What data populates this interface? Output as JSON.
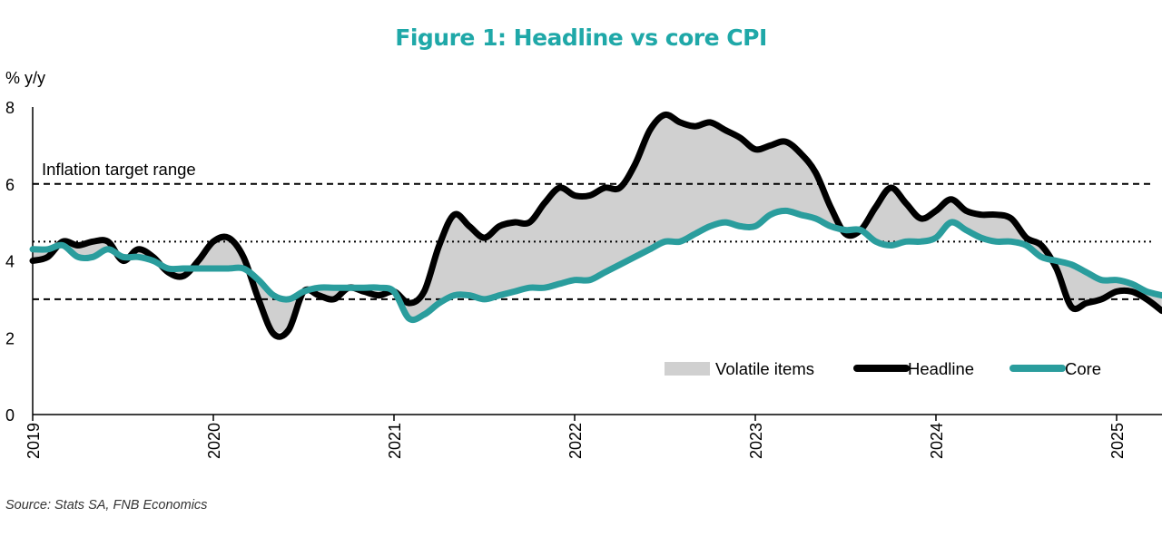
{
  "title": "Figure 1: Headline vs core CPI",
  "source": "Source: Stats SA, FNB Economics",
  "colors": {
    "title": "#1fa8a8",
    "headline": "#000000",
    "core": "#2a9d9d",
    "volatile_fill": "#d0d0d0",
    "axis": "#000000"
  },
  "chart_data": {
    "type": "line",
    "title": "Figure 1: Headline vs core CPI",
    "ylabel": "% y/y",
    "xlabel": "",
    "ylim": [
      0,
      8
    ],
    "yticks": [
      0,
      2,
      4,
      6,
      8
    ],
    "xlim": [
      2019.0,
      2025.25
    ],
    "xticks": [
      2019,
      2020,
      2021,
      2022,
      2023,
      2024,
      2025
    ],
    "grid": false,
    "legend_position": "bottom-right",
    "annotations": [
      {
        "text": "Inflation target range",
        "x": 2019.05,
        "y": 6.2
      }
    ],
    "reference_lines": [
      {
        "y": 6,
        "style": "dashed"
      },
      {
        "y": 4.5,
        "style": "dotted"
      },
      {
        "y": 3,
        "style": "dashed"
      }
    ],
    "series": [
      {
        "name": "Headline",
        "x": [
          2019.0,
          2019.0833,
          2019.1667,
          2019.25,
          2019.3333,
          2019.4167,
          2019.5,
          2019.5833,
          2019.6667,
          2019.75,
          2019.8333,
          2019.9167,
          2020.0,
          2020.0833,
          2020.1667,
          2020.25,
          2020.3333,
          2020.4167,
          2020.5,
          2020.5833,
          2020.6667,
          2020.75,
          2020.8333,
          2020.9167,
          2021.0,
          2021.0833,
          2021.1667,
          2021.25,
          2021.3333,
          2021.4167,
          2021.5,
          2021.5833,
          2021.6667,
          2021.75,
          2021.8333,
          2021.9167,
          2022.0,
          2022.0833,
          2022.1667,
          2022.25,
          2022.3333,
          2022.4167,
          2022.5,
          2022.5833,
          2022.6667,
          2022.75,
          2022.8333,
          2022.9167,
          2023.0,
          2023.0833,
          2023.1667,
          2023.25,
          2023.3333,
          2023.4167,
          2023.5,
          2023.5833,
          2023.6667,
          2023.75,
          2023.8333,
          2023.9167,
          2024.0,
          2024.0833,
          2024.1667,
          2024.25,
          2024.3333,
          2024.4167,
          2024.5,
          2024.5833,
          2024.6667,
          2024.75,
          2024.8333,
          2024.9167,
          2025.0,
          2025.0833,
          2025.1667,
          2025.25
        ],
        "values": [
          4.0,
          4.1,
          4.5,
          4.4,
          4.5,
          4.5,
          4.0,
          4.3,
          4.1,
          3.7,
          3.6,
          4.0,
          4.5,
          4.6,
          4.1,
          3.0,
          2.1,
          2.2,
          3.2,
          3.1,
          3.0,
          3.3,
          3.2,
          3.1,
          3.2,
          2.9,
          3.2,
          4.4,
          5.2,
          4.9,
          4.6,
          4.9,
          5.0,
          5.0,
          5.5,
          5.9,
          5.7,
          5.7,
          5.9,
          5.9,
          6.5,
          7.4,
          7.8,
          7.6,
          7.5,
          7.6,
          7.4,
          7.2,
          6.9,
          7.0,
          7.1,
          6.8,
          6.3,
          5.4,
          4.7,
          4.8,
          5.4,
          5.9,
          5.5,
          5.1,
          5.3,
          5.6,
          5.3,
          5.2,
          5.2,
          5.1,
          4.6,
          4.4,
          3.8,
          2.8,
          2.9,
          3.0,
          3.2,
          3.2,
          3.0,
          2.7
        ]
      },
      {
        "name": "Core",
        "x": [
          2019.0,
          2019.0833,
          2019.1667,
          2019.25,
          2019.3333,
          2019.4167,
          2019.5,
          2019.5833,
          2019.6667,
          2019.75,
          2019.8333,
          2019.9167,
          2020.0,
          2020.0833,
          2020.1667,
          2020.25,
          2020.3333,
          2020.4167,
          2020.5,
          2020.5833,
          2020.6667,
          2020.75,
          2020.8333,
          2020.9167,
          2021.0,
          2021.0833,
          2021.1667,
          2021.25,
          2021.3333,
          2021.4167,
          2021.5,
          2021.5833,
          2021.6667,
          2021.75,
          2021.8333,
          2021.9167,
          2022.0,
          2022.0833,
          2022.1667,
          2022.25,
          2022.3333,
          2022.4167,
          2022.5,
          2022.5833,
          2022.6667,
          2022.75,
          2022.8333,
          2022.9167,
          2023.0,
          2023.0833,
          2023.1667,
          2023.25,
          2023.3333,
          2023.4167,
          2023.5,
          2023.5833,
          2023.6667,
          2023.75,
          2023.8333,
          2023.9167,
          2024.0,
          2024.0833,
          2024.1667,
          2024.25,
          2024.3333,
          2024.4167,
          2024.5,
          2024.5833,
          2024.6667,
          2024.75,
          2024.8333,
          2024.9167,
          2025.0,
          2025.0833,
          2025.1667,
          2025.25
        ],
        "values": [
          4.3,
          4.3,
          4.4,
          4.1,
          4.1,
          4.3,
          4.1,
          4.1,
          4.0,
          3.8,
          3.8,
          3.8,
          3.8,
          3.8,
          3.8,
          3.5,
          3.1,
          3.0,
          3.2,
          3.3,
          3.3,
          3.3,
          3.3,
          3.3,
          3.2,
          2.5,
          2.6,
          2.9,
          3.1,
          3.1,
          3.0,
          3.1,
          3.2,
          3.3,
          3.3,
          3.4,
          3.5,
          3.5,
          3.7,
          3.9,
          4.1,
          4.3,
          4.5,
          4.5,
          4.7,
          4.9,
          5.0,
          4.9,
          4.9,
          5.2,
          5.3,
          5.2,
          5.1,
          4.9,
          4.8,
          4.8,
          4.5,
          4.4,
          4.5,
          4.5,
          4.6,
          5.0,
          4.8,
          4.6,
          4.5,
          4.5,
          4.4,
          4.1,
          4.0,
          3.9,
          3.7,
          3.5,
          3.5,
          3.4,
          3.2,
          3.1
        ]
      }
    ],
    "filled_area": {
      "name": "Volatile items",
      "between": [
        "Headline",
        "Core"
      ]
    }
  }
}
